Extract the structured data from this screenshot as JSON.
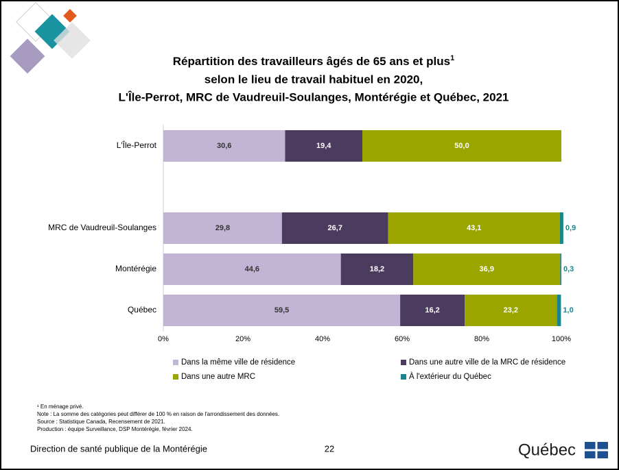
{
  "chart_data": {
    "type": "stacked-barh",
    "title": [
      "Répartition des travailleurs âgés de 65 ans et plus",
      "selon le lieu de travail habituel en 2020,",
      "L'Île-Perrot, MRC de Vaudreuil-Soulanges, Montérégie et Québec, 2021"
    ],
    "title_note_marker": "1",
    "categories": [
      "L'Île-Perrot",
      null,
      "MRC de Vaudreuil-Soulanges",
      "Montérégie",
      "Québec"
    ],
    "series": [
      {
        "name": "Dans la même ville de résidence",
        "color": "#c2b4d5",
        "label_color": "#333333",
        "values": [
          30.6,
          null,
          29.8,
          44.6,
          59.5
        ],
        "value_labels": [
          "30,6",
          null,
          "29,8",
          "44,6",
          "59,5"
        ]
      },
      {
        "name": "Dans une autre ville de la MRC de résidence",
        "color": "#4b3b5f",
        "label_color": "#ffffff",
        "values": [
          19.4,
          null,
          26.7,
          18.2,
          16.2
        ],
        "value_labels": [
          "19,4",
          null,
          "26,7",
          "18,2",
          "16,2"
        ]
      },
      {
        "name": "Dans une autre MRC",
        "color": "#9aa500",
        "label_color": "#ffffff",
        "values": [
          50.0,
          null,
          43.1,
          36.9,
          23.2
        ],
        "value_labels": [
          "50,0",
          null,
          "43,1",
          "36,9",
          "23,2"
        ]
      },
      {
        "name": "À l'extérieur du Québec",
        "color": "#18868c",
        "label_color": "#18868c",
        "values": [
          null,
          null,
          0.9,
          0.3,
          1.0
        ],
        "value_labels": [
          null,
          null,
          "0,9",
          "0,3",
          "1,0"
        ]
      }
    ],
    "xlim": [
      0,
      100
    ],
    "xticks": [
      {
        "value": 0,
        "label": "0%"
      },
      {
        "value": 20,
        "label": "20%"
      },
      {
        "value": 40,
        "label": "40%"
      },
      {
        "value": 60,
        "label": "60%"
      },
      {
        "value": 80,
        "label": "80%"
      },
      {
        "value": 100,
        "label": "100%"
      }
    ],
    "grid": false
  },
  "notes": [
    "¹ En ménage privé.",
    "Note : La somme des catégories peut différer de 100 % en raison de l'arrondissement des données.",
    "Source : Statistique Canada, Recensement de 2021.",
    "Production : équipe Surveillance, DSP Montérégie, février 2024."
  ],
  "footer": {
    "organization": "Direction de santé publique de la Montérégie",
    "page": "22",
    "logo": "Québec"
  }
}
